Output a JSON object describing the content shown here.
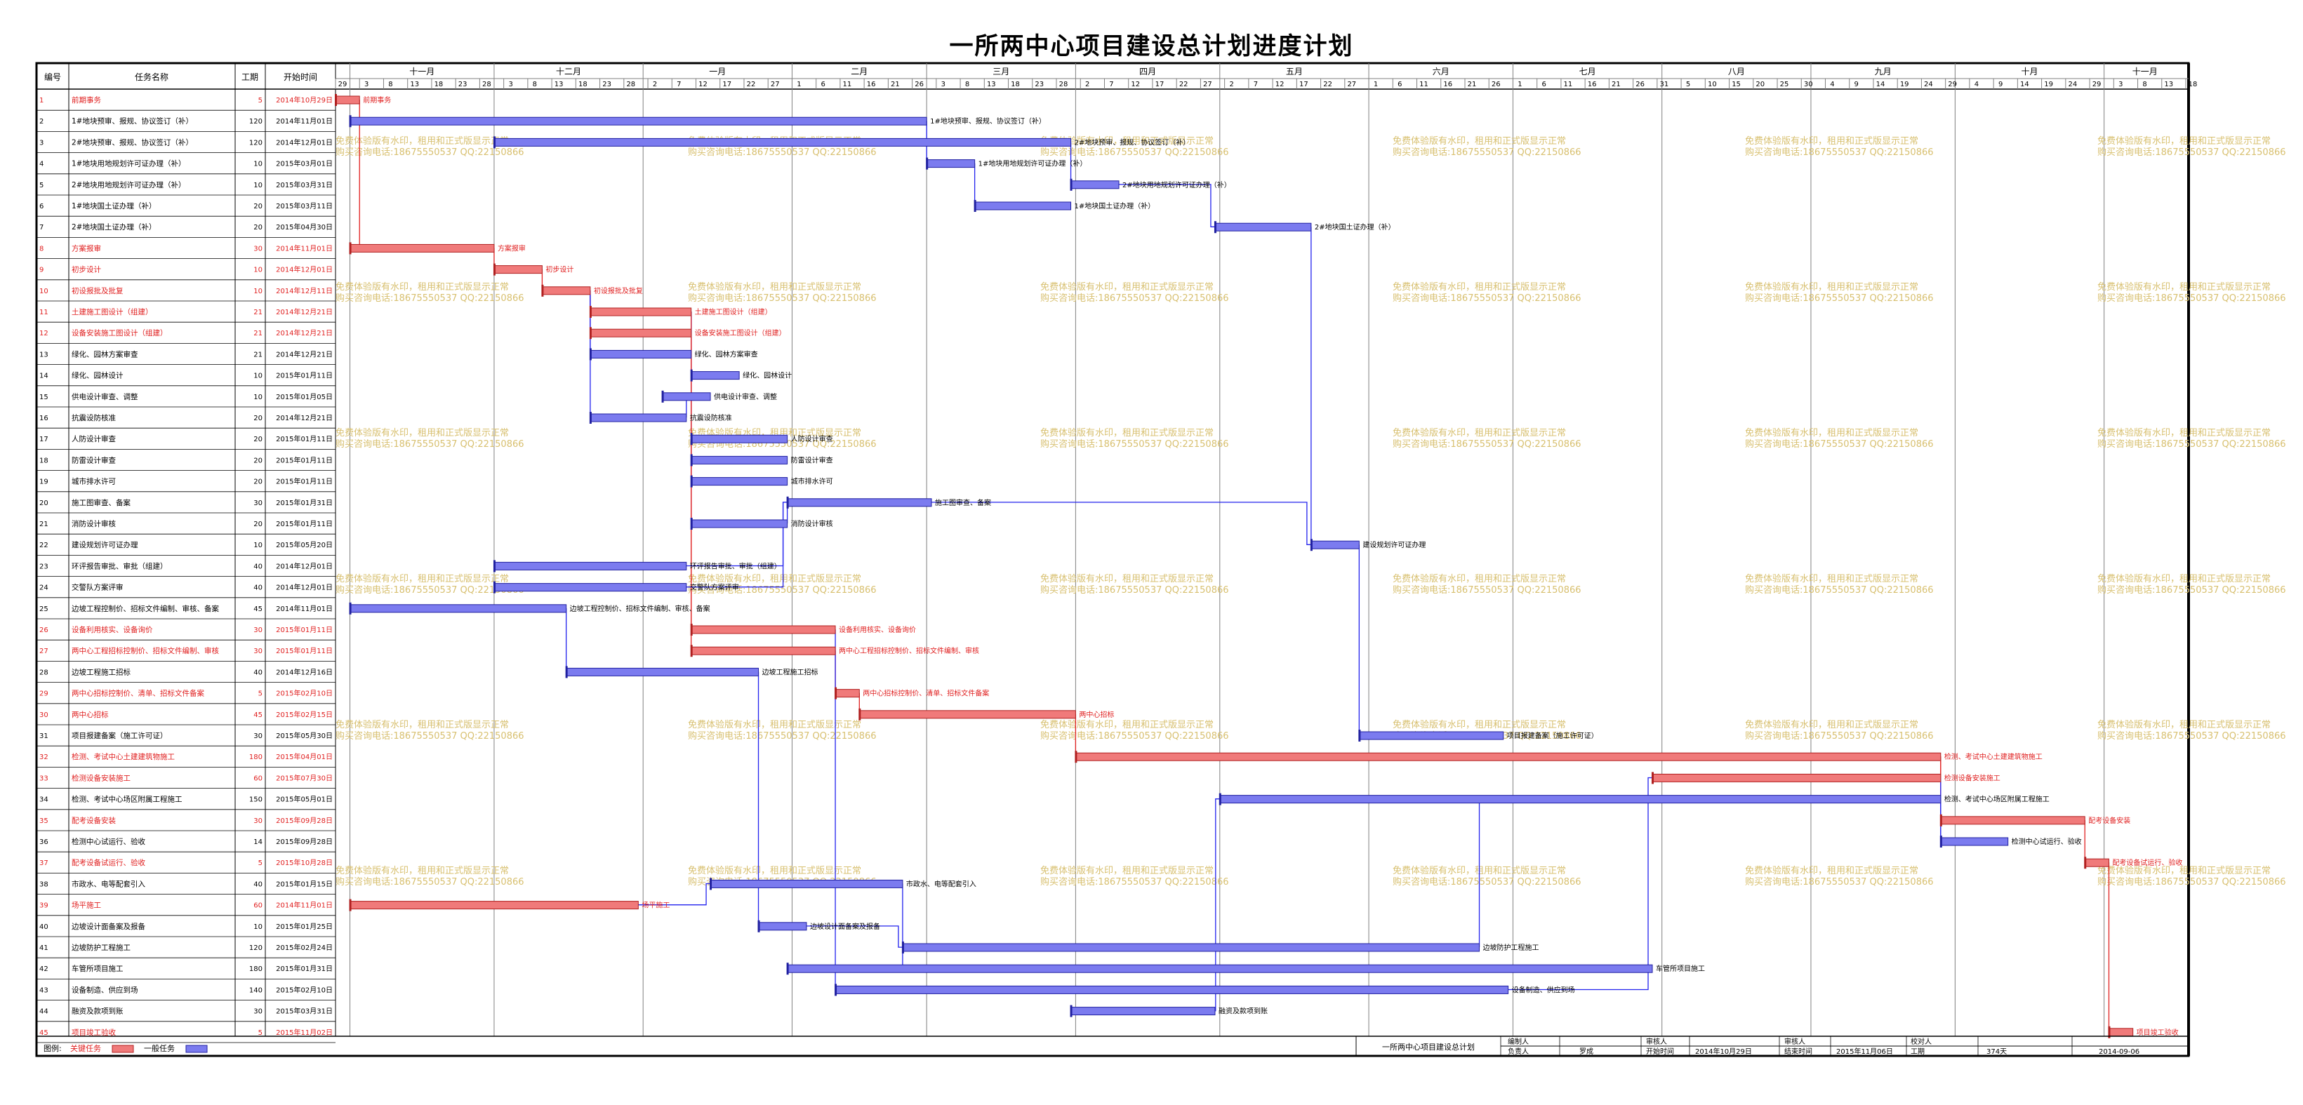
{
  "page": {
    "title": "一所两中心项目建设总计划进度计划"
  },
  "watermark": {
    "line1": "免费体验版有水印，租用和正式版显示正常",
    "line2": "购买咨询电话:18675550537 QQ:22150866"
  },
  "colors": {
    "critical_fill": "#f07a7a",
    "critical_stroke": "#b02020",
    "normal_fill": "#7b7bef",
    "normal_stroke": "#2020a0",
    "critical_text": "#e02020",
    "link": "#2222ee",
    "critical_link": "#e02020",
    "grid": "#808080",
    "watermark": "#d8c070"
  },
  "table_headers": {
    "no": "编号",
    "name": "任务名称",
    "dur": "工期",
    "start": "开始时间"
  },
  "legend": {
    "label": "图例:",
    "critical": "关键任务",
    "normal": "一般任务"
  },
  "footer": {
    "plan_name": "一所两中心项目建设总计划",
    "labels": [
      "编制人",
      "负责人",
      "审核人",
      "开始时间",
      "审核人",
      "结束时间",
      "校对人",
      "工期"
    ],
    "values": {
      "owner": "罗成",
      "start": "2014年10月29日",
      "end": "2015年11月06日",
      "duration": "374天",
      "date": "2014-09-06"
    }
  },
  "chart_data": {
    "type": "gantt",
    "x_start": "2014-10-29",
    "x_end": "2015-11-18",
    "months": [
      {
        "label": "十一月",
        "start": "2014-11-01"
      },
      {
        "label": "十二月",
        "start": "2014-12-01"
      },
      {
        "label": "一月",
        "start": "2015-01-01"
      },
      {
        "label": "二月",
        "start": "2015-02-01"
      },
      {
        "label": "三月",
        "start": "2015-03-01"
      },
      {
        "label": "四月",
        "start": "2015-04-01"
      },
      {
        "label": "五月",
        "start": "2015-05-01"
      },
      {
        "label": "六月",
        "start": "2015-06-01"
      },
      {
        "label": "七月",
        "start": "2015-07-01"
      },
      {
        "label": "八月",
        "start": "2015-08-01"
      },
      {
        "label": "九月",
        "start": "2015-09-01"
      },
      {
        "label": "十月",
        "start": "2015-10-01"
      },
      {
        "label": "十一月",
        "start": "2015-11-01"
      }
    ],
    "day_ticks": [
      "2014-10-29",
      "2014-11-03",
      "2014-11-08",
      "2014-11-13",
      "2014-11-18",
      "2014-11-23",
      "2014-11-28",
      "2014-12-03",
      "2014-12-08",
      "2014-12-13",
      "2014-12-18",
      "2014-12-23",
      "2014-12-28",
      "2015-01-02",
      "2015-01-07",
      "2015-01-12",
      "2015-01-17",
      "2015-01-22",
      "2015-01-27",
      "2015-02-01",
      "2015-02-06",
      "2015-02-11",
      "2015-02-16",
      "2015-02-21",
      "2015-02-26",
      "2015-03-03",
      "2015-03-08",
      "2015-03-13",
      "2015-03-18",
      "2015-03-23",
      "2015-03-28",
      "2015-04-02",
      "2015-04-07",
      "2015-04-12",
      "2015-04-17",
      "2015-04-22",
      "2015-04-27",
      "2015-05-02",
      "2015-05-07",
      "2015-05-12",
      "2015-05-17",
      "2015-05-22",
      "2015-05-27",
      "2015-06-01",
      "2015-06-06",
      "2015-06-11",
      "2015-06-16",
      "2015-06-21",
      "2015-06-26",
      "2015-07-01",
      "2015-07-06",
      "2015-07-11",
      "2015-07-16",
      "2015-07-21",
      "2015-07-26",
      "2015-07-31",
      "2015-08-05",
      "2015-08-10",
      "2015-08-15",
      "2015-08-20",
      "2015-08-25",
      "2015-08-30",
      "2015-09-04",
      "2015-09-09",
      "2015-09-14",
      "2015-09-19",
      "2015-09-24",
      "2015-09-29",
      "2015-10-04",
      "2015-10-09",
      "2015-10-14",
      "2015-10-19",
      "2015-10-24",
      "2015-10-29",
      "2015-11-03",
      "2015-11-08",
      "2015-11-13",
      "2015-11-18"
    ],
    "tasks": [
      {
        "id": 1,
        "name": "前期事务",
        "dur": 5,
        "start": "2014年10月29日",
        "s": "2014-10-29",
        "critical": true,
        "label": "前期事务"
      },
      {
        "id": 2,
        "name": "1#地块预审、报规、协议签订（补）",
        "dur": 120,
        "start": "2014年11月01日",
        "s": "2014-11-01",
        "critical": false,
        "label": "1#地块预审、报规、协议签订（补）"
      },
      {
        "id": 3,
        "name": "2#地块预审、报规、协议签订（补）",
        "dur": 120,
        "start": "2014年12月01日",
        "s": "2014-12-01",
        "critical": false,
        "label": "2#地块预审、报规、协议签订（补）"
      },
      {
        "id": 4,
        "name": "1#地块用地规划许可证办理（补）",
        "dur": 10,
        "start": "2015年03月01日",
        "s": "2015-03-01",
        "critical": false,
        "label": "1#地块用地规划许可证办理（补）"
      },
      {
        "id": 5,
        "name": "2#地块用地规划许可证办理（补）",
        "dur": 10,
        "start": "2015年03月31日",
        "s": "2015-03-31",
        "critical": false,
        "label": "2#地块用地规划许可证办理（补）"
      },
      {
        "id": 6,
        "name": "1#地块国土证办理（补）",
        "dur": 20,
        "start": "2015年03月11日",
        "s": "2015-03-11",
        "critical": false,
        "label": "1#地块国土证办理（补）"
      },
      {
        "id": 7,
        "name": "2#地块国土证办理（补）",
        "dur": 20,
        "start": "2015年04月30日",
        "s": "2015-04-30",
        "critical": false,
        "label": "2#地块国土证办理（补）"
      },
      {
        "id": 8,
        "name": "方案报审",
        "dur": 30,
        "start": "2014年11月01日",
        "s": "2014-11-01",
        "critical": true,
        "label": "方案报审"
      },
      {
        "id": 9,
        "name": "初步设计",
        "dur": 10,
        "start": "2014年12月01日",
        "s": "2014-12-01",
        "critical": true,
        "label": "初步设计"
      },
      {
        "id": 10,
        "name": "初设报批及批复",
        "dur": 10,
        "start": "2014年12月11日",
        "s": "2014-12-11",
        "critical": true,
        "label": "初设报批及批复"
      },
      {
        "id": 11,
        "name": "土建施工图设计（组建）",
        "dur": 21,
        "start": "2014年12月21日",
        "s": "2014-12-21",
        "critical": true,
        "label": "土建施工图设计（组建）"
      },
      {
        "id": 12,
        "name": "设备安装施工图设计（组建）",
        "dur": 21,
        "start": "2014年12月21日",
        "s": "2014-12-21",
        "critical": true,
        "label": "设备安装施工图设计（组建）"
      },
      {
        "id": 13,
        "name": "绿化、园林方案审查",
        "dur": 21,
        "start": "2014年12月21日",
        "s": "2014-12-21",
        "critical": false,
        "label": "绿化、园林方案审查"
      },
      {
        "id": 14,
        "name": "绿化、园林设计",
        "dur": 10,
        "start": "2015年01月11日",
        "s": "2015-01-11",
        "critical": false,
        "label": "绿化、园林设计"
      },
      {
        "id": 15,
        "name": "供电设计审查、调整",
        "dur": 10,
        "start": "2015年01月05日",
        "s": "2015-01-05",
        "critical": false,
        "label": "供电设计审查、调整"
      },
      {
        "id": 16,
        "name": "抗震设防核准",
        "dur": 20,
        "start": "2014年12月21日",
        "s": "2014-12-21",
        "critical": false,
        "label": "抗震设防核准"
      },
      {
        "id": 17,
        "name": "人防设计审查",
        "dur": 20,
        "start": "2015年01月11日",
        "s": "2015-01-11",
        "critical": false,
        "label": "人防设计审查"
      },
      {
        "id": 18,
        "name": "防雷设计审查",
        "dur": 20,
        "start": "2015年01月11日",
        "s": "2015-01-11",
        "critical": false,
        "label": "防雷设计审查"
      },
      {
        "id": 19,
        "name": "城市排水许可",
        "dur": 20,
        "start": "2015年01月11日",
        "s": "2015-01-11",
        "critical": false,
        "label": "城市排水许可"
      },
      {
        "id": 20,
        "name": "施工图审查、备案",
        "dur": 30,
        "start": "2015年01月31日",
        "s": "2015-01-31",
        "critical": false,
        "label": "施工图审查、备案"
      },
      {
        "id": 21,
        "name": "消防设计审核",
        "dur": 20,
        "start": "2015年01月11日",
        "s": "2015-01-11",
        "critical": false,
        "label": "消防设计审核"
      },
      {
        "id": 22,
        "name": "建设规划许可证办理",
        "dur": 10,
        "start": "2015年05月20日",
        "s": "2015-05-20",
        "critical": false,
        "label": "建设规划许可证办理"
      },
      {
        "id": 23,
        "name": "环评报告审批、审批（组建）",
        "dur": 40,
        "start": "2014年12月01日",
        "s": "2014-12-01",
        "critical": false,
        "label": "环评报告审批、审批（组建）"
      },
      {
        "id": 24,
        "name": "交警队方案评审",
        "dur": 40,
        "start": "2014年12月01日",
        "s": "2014-12-01",
        "critical": false,
        "label": "交警队方案评审"
      },
      {
        "id": 25,
        "name": "边坡工程控制价、招标文件编制、审核、备案",
        "dur": 45,
        "start": "2014年11月01日",
        "s": "2014-11-01",
        "critical": false,
        "label": "边坡工程控制价、招标文件编制、审核、备案"
      },
      {
        "id": 26,
        "name": "设备利用核实、设备询价",
        "dur": 30,
        "start": "2015年01月11日",
        "s": "2015-01-11",
        "critical": true,
        "label": "设备利用核实、设备询价"
      },
      {
        "id": 27,
        "name": "两中心工程招标控制价、招标文件编制、审核",
        "dur": 30,
        "start": "2015年01月11日",
        "s": "2015-01-11",
        "critical": true,
        "label": "两中心工程招标控制价、招标文件编制、审核"
      },
      {
        "id": 28,
        "name": "边坡工程施工招标",
        "dur": 40,
        "start": "2014年12月16日",
        "s": "2014-12-16",
        "critical": false,
        "label": "边坡工程施工招标"
      },
      {
        "id": 29,
        "name": "两中心招标控制价、清单、招标文件备案",
        "dur": 5,
        "start": "2015年02月10日",
        "s": "2015-02-10",
        "critical": true,
        "label": "两中心招标控制价、清单、招标文件备案"
      },
      {
        "id": 30,
        "name": "两中心招标",
        "dur": 45,
        "start": "2015年02月15日",
        "s": "2015-02-15",
        "critical": true,
        "label": "两中心招标"
      },
      {
        "id": 31,
        "name": "项目报建备案（施工许可证）",
        "dur": 30,
        "start": "2015年05月30日",
        "s": "2015-05-30",
        "critical": false,
        "label": "项目报建备案（施工许可证）"
      },
      {
        "id": 32,
        "name": "检测、考试中心土建建筑物施工",
        "dur": 180,
        "start": "2015年04月01日",
        "s": "2015-04-01",
        "critical": true,
        "label": "检测、考试中心土建建筑物施工"
      },
      {
        "id": 33,
        "name": "检测设备安装施工",
        "dur": 60,
        "start": "2015年07月30日",
        "s": "2015-07-30",
        "critical": true,
        "label": "检测设备安装施工"
      },
      {
        "id": 34,
        "name": "检测、考试中心场区附属工程施工",
        "dur": 150,
        "start": "2015年05月01日",
        "s": "2015-05-01",
        "critical": false,
        "label": "检测、考试中心场区附属工程施工"
      },
      {
        "id": 35,
        "name": "配考设备安装",
        "dur": 30,
        "start": "2015年09月28日",
        "s": "2015-09-28",
        "critical": true,
        "label": "配考设备安装"
      },
      {
        "id": 36,
        "name": "检测中心试运行、验收",
        "dur": 14,
        "start": "2015年09月28日",
        "s": "2015-09-28",
        "critical": false,
        "label": "检测中心试运行、验收"
      },
      {
        "id": 37,
        "name": "配考设备试运行、验收",
        "dur": 5,
        "start": "2015年10月28日",
        "s": "2015-10-28",
        "critical": true,
        "label": "配考设备试运行、验收"
      },
      {
        "id": 38,
        "name": "市政水、电等配套引入",
        "dur": 40,
        "start": "2015年01月15日",
        "s": "2015-01-15",
        "critical": false,
        "label": "市政水、电等配套引入"
      },
      {
        "id": 39,
        "name": "场平施工",
        "dur": 60,
        "start": "2014年11月01日",
        "s": "2014-11-01",
        "critical": true,
        "label": "场平施工"
      },
      {
        "id": 40,
        "name": "边坡设计面备案及报备",
        "dur": 10,
        "start": "2015年01月25日",
        "s": "2015-01-25",
        "critical": false,
        "label": "边坡设计面备案及报备"
      },
      {
        "id": 41,
        "name": "边坡防护工程施工",
        "dur": 120,
        "start": "2015年02月24日",
        "s": "2015-02-24",
        "critical": false,
        "label": "边坡防护工程施工"
      },
      {
        "id": 42,
        "name": "车管所项目施工",
        "dur": 180,
        "start": "2015年01月31日",
        "s": "2015-01-31",
        "critical": false,
        "label": "车管所项目施工"
      },
      {
        "id": 43,
        "name": "设备制造、供应到场",
        "dur": 140,
        "start": "2015年02月10日",
        "s": "2015-02-10",
        "critical": false,
        "label": "设备制造、供应到场"
      },
      {
        "id": 44,
        "name": "融资及款项到账",
        "dur": 30,
        "start": "2015年03月31日",
        "s": "2015-03-31",
        "critical": false,
        "label": "融资及款项到账"
      },
      {
        "id": 45,
        "name": "项目竣工验收",
        "dur": 5,
        "start": "2015年11月02日",
        "s": "2015-11-02",
        "critical": true,
        "label": "项目竣工验收"
      }
    ],
    "links": [
      [
        1,
        8
      ],
      [
        8,
        9
      ],
      [
        9,
        10
      ],
      [
        10,
        11
      ],
      [
        10,
        12
      ],
      [
        10,
        13
      ],
      [
        10,
        16
      ],
      [
        13,
        14
      ],
      [
        16,
        15
      ],
      [
        11,
        17
      ],
      [
        11,
        18
      ],
      [
        11,
        19
      ],
      [
        11,
        21
      ],
      [
        2,
        4
      ],
      [
        3,
        5
      ],
      [
        4,
        6
      ],
      [
        5,
        7
      ],
      [
        7,
        22
      ],
      [
        20,
        22
      ],
      [
        11,
        26
      ],
      [
        12,
        27
      ],
      [
        27,
        29
      ],
      [
        29,
        30
      ],
      [
        30,
        32
      ],
      [
        22,
        31
      ],
      [
        32,
        33
      ],
      [
        32,
        35
      ],
      [
        33,
        36
      ],
      [
        35,
        37
      ],
      [
        37,
        45
      ],
      [
        25,
        28
      ],
      [
        28,
        40
      ],
      [
        40,
        41
      ],
      [
        41,
        34
      ],
      [
        39,
        38
      ],
      [
        38,
        42
      ],
      [
        21,
        20
      ],
      [
        23,
        20
      ],
      [
        24,
        20
      ],
      [
        26,
        43
      ],
      [
        43,
        33
      ],
      [
        44,
        34
      ],
      [
        34,
        36
      ]
    ]
  }
}
